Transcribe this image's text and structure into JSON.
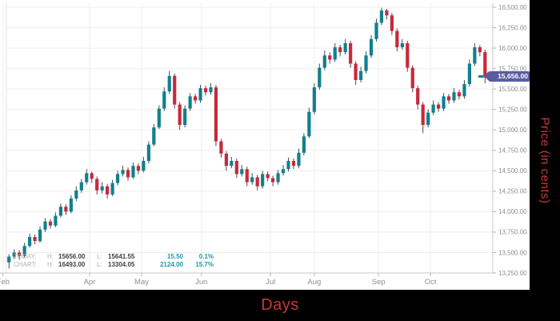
{
  "axis_titles": {
    "x": "Days",
    "y": "Price (in cents)"
  },
  "price_tag": {
    "value": "15,656.00"
  },
  "legend": {
    "h_label": "H:",
    "l_label": "L:",
    "today": {
      "label": "TODAY:",
      "high": "15656.00",
      "low": "15641.55",
      "change": "15.50",
      "change_pct": "0.1%"
    },
    "chart": {
      "label": "CHART:",
      "high": "16493.00",
      "low": "13304.05",
      "change": "2124.00",
      "change_pct": "15.7%"
    }
  },
  "colors": {
    "up": "#10808f",
    "down": "#c8293c",
    "wick": "#4d4d4d",
    "grid": "#efefef",
    "axis": "#c8c8c8",
    "tick_text": "#8e8e8e",
    "tag": "#5b5b9e",
    "axis_title_red": "#cc3838"
  },
  "chart_data": {
    "type": "candlestick",
    "title": "",
    "xlabel": "Days",
    "ylabel": "Price (in cents)",
    "y_range": [
      13250,
      16500
    ],
    "y_tick_step": 250,
    "y_ticks": [
      13250,
      13500,
      13750,
      14000,
      14250,
      14500,
      14750,
      15000,
      15250,
      15500,
      15750,
      16000,
      16250,
      16500
    ],
    "x_ticks": [
      {
        "label": "Feb",
        "f": -0.007
      },
      {
        "label": "Apr",
        "f": 0.171
      },
      {
        "label": "May",
        "f": 0.278
      },
      {
        "label": "Jun",
        "f": 0.401
      },
      {
        "label": "Jul",
        "f": 0.543
      },
      {
        "label": "Aug",
        "f": 0.633
      },
      {
        "label": "Sep",
        "f": 0.765
      },
      {
        "label": "Oct",
        "f": 0.872
      }
    ],
    "grid": true,
    "legend_position": "bottom-left",
    "current_price": 15656.0,
    "today_high": 15656.0,
    "today_low": 15641.55,
    "chart_high": 16493.0,
    "chart_low": 13304.05,
    "candles_format": [
      "open",
      "high",
      "low",
      "close"
    ],
    "candles": [
      [
        13380,
        13480,
        13304,
        13450
      ],
      [
        13450,
        13540,
        13420,
        13500
      ],
      [
        13500,
        13530,
        13410,
        13460
      ],
      [
        13460,
        13620,
        13440,
        13580
      ],
      [
        13580,
        13730,
        13560,
        13690
      ],
      [
        13690,
        13720,
        13600,
        13640
      ],
      [
        13640,
        13820,
        13620,
        13780
      ],
      [
        13780,
        13920,
        13750,
        13880
      ],
      [
        13880,
        13910,
        13790,
        13830
      ],
      [
        13830,
        13990,
        13810,
        13950
      ],
      [
        13950,
        14100,
        13930,
        14060
      ],
      [
        14060,
        14090,
        13960,
        14000
      ],
      [
        14000,
        14200,
        13980,
        14160
      ],
      [
        14160,
        14310,
        14130,
        14260
      ],
      [
        14260,
        14400,
        14230,
        14360
      ],
      [
        14360,
        14520,
        14330,
        14470
      ],
      [
        14470,
        14490,
        14350,
        14400
      ],
      [
        14400,
        14430,
        14210,
        14260
      ],
      [
        14260,
        14360,
        14220,
        14310
      ],
      [
        14310,
        14340,
        14160,
        14210
      ],
      [
        14210,
        14390,
        14190,
        14350
      ],
      [
        14350,
        14500,
        14320,
        14460
      ],
      [
        14460,
        14560,
        14430,
        14510
      ],
      [
        14510,
        14540,
        14380,
        14420
      ],
      [
        14420,
        14600,
        14400,
        14560
      ],
      [
        14560,
        14590,
        14460,
        14500
      ],
      [
        14500,
        14670,
        14480,
        14620
      ],
      [
        14620,
        14860,
        14590,
        14820
      ],
      [
        14820,
        15070,
        14800,
        15030
      ],
      [
        15030,
        15300,
        15010,
        15260
      ],
      [
        15260,
        15520,
        15230,
        15470
      ],
      [
        15470,
        15720,
        15440,
        15660
      ],
      [
        15660,
        15690,
        15260,
        15310
      ],
      [
        15310,
        15340,
        15000,
        15060
      ],
      [
        15060,
        15300,
        15030,
        15260
      ],
      [
        15260,
        15450,
        15230,
        15410
      ],
      [
        15410,
        15440,
        15320,
        15360
      ],
      [
        15360,
        15550,
        15330,
        15510
      ],
      [
        15510,
        15540,
        15420,
        15460
      ],
      [
        15460,
        15570,
        15430,
        15520
      ],
      [
        15520,
        15550,
        14800,
        14860
      ],
      [
        14860,
        14890,
        14660,
        14710
      ],
      [
        14710,
        14740,
        14500,
        14560
      ],
      [
        14560,
        14670,
        14530,
        14620
      ],
      [
        14620,
        14650,
        14410,
        14460
      ],
      [
        14460,
        14570,
        14430,
        14520
      ],
      [
        14520,
        14550,
        14310,
        14360
      ],
      [
        14360,
        14470,
        14330,
        14420
      ],
      [
        14420,
        14450,
        14260,
        14310
      ],
      [
        14310,
        14500,
        14280,
        14460
      ],
      [
        14460,
        14490,
        14370,
        14410
      ],
      [
        14410,
        14440,
        14310,
        14360
      ],
      [
        14360,
        14510,
        14330,
        14470
      ],
      [
        14470,
        14570,
        14440,
        14520
      ],
      [
        14520,
        14660,
        14490,
        14620
      ],
      [
        14620,
        14650,
        14520,
        14560
      ],
      [
        14560,
        14770,
        14530,
        14720
      ],
      [
        14720,
        14960,
        14690,
        14920
      ],
      [
        14920,
        15270,
        14900,
        15220
      ],
      [
        15220,
        15570,
        15190,
        15520
      ],
      [
        15520,
        15810,
        15490,
        15760
      ],
      [
        15760,
        15970,
        15730,
        15910
      ],
      [
        15910,
        15950,
        15810,
        15860
      ],
      [
        15860,
        16060,
        15830,
        16010
      ],
      [
        16010,
        16040,
        15900,
        15950
      ],
      [
        15950,
        16110,
        15920,
        16060
      ],
      [
        16060,
        16090,
        15760,
        15810
      ],
      [
        15810,
        15840,
        15550,
        15610
      ],
      [
        15610,
        15770,
        15580,
        15720
      ],
      [
        15720,
        15960,
        15690,
        15910
      ],
      [
        15910,
        16160,
        15880,
        16110
      ],
      [
        16110,
        16360,
        16080,
        16310
      ],
      [
        16310,
        16493,
        16280,
        16460
      ],
      [
        16460,
        16480,
        16350,
        16400
      ],
      [
        16400,
        16430,
        16160,
        16210
      ],
      [
        16210,
        16240,
        15960,
        16010
      ],
      [
        16010,
        16110,
        15980,
        16060
      ],
      [
        16060,
        16090,
        15710,
        15760
      ],
      [
        15760,
        15790,
        15460,
        15510
      ],
      [
        15510,
        15540,
        15250,
        15310
      ],
      [
        15310,
        15340,
        14960,
        15060
      ],
      [
        15060,
        15250,
        15030,
        15210
      ],
      [
        15210,
        15360,
        15180,
        15310
      ],
      [
        15310,
        15340,
        15220,
        15260
      ],
      [
        15260,
        15450,
        15230,
        15410
      ],
      [
        15410,
        15440,
        15320,
        15360
      ],
      [
        15360,
        15510,
        15330,
        15460
      ],
      [
        15460,
        15490,
        15370,
        15410
      ],
      [
        15410,
        15610,
        15380,
        15560
      ],
      [
        15560,
        15860,
        15530,
        15810
      ],
      [
        15810,
        16060,
        15780,
        16010
      ],
      [
        16010,
        16040,
        15900,
        15950
      ],
      [
        15950,
        15980,
        15570,
        15640
      ],
      [
        15645,
        15656,
        15641.55,
        15656
      ]
    ]
  }
}
